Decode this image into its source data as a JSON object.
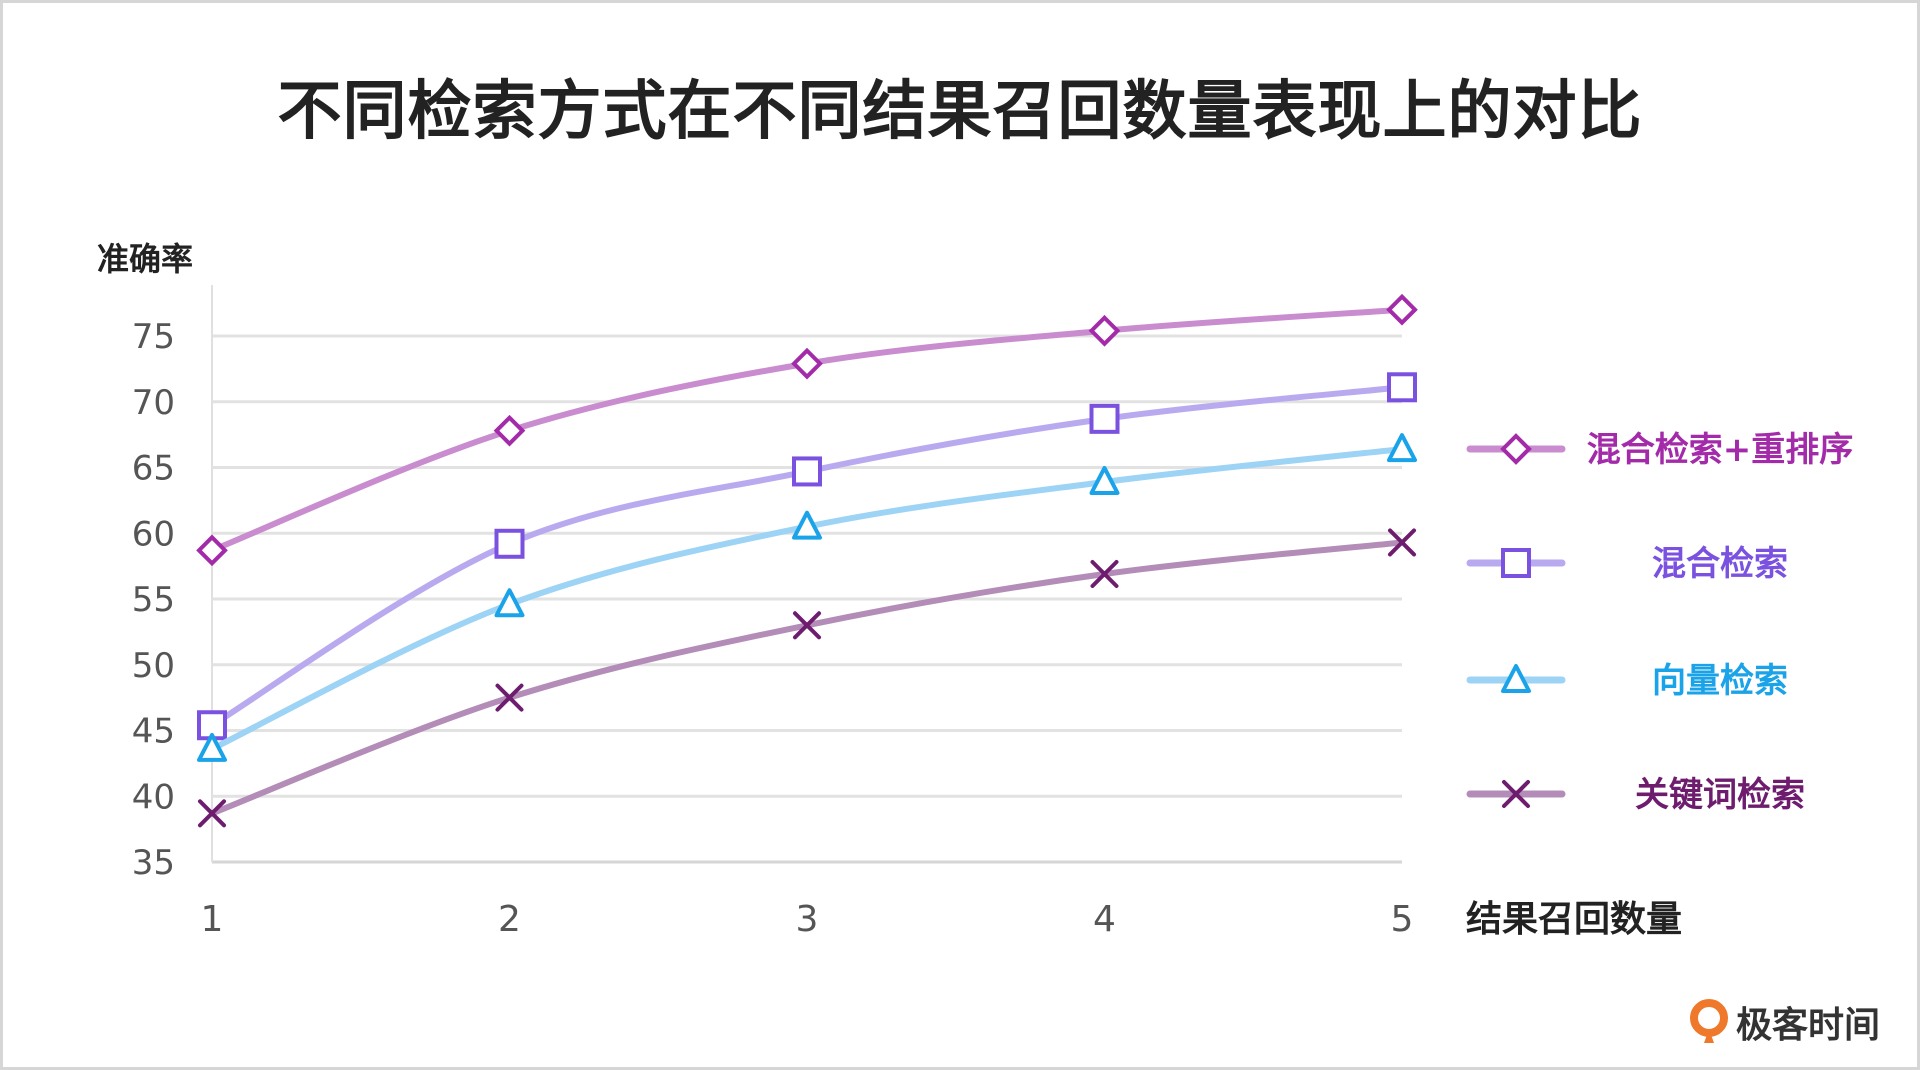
{
  "chart_data": {
    "type": "line",
    "title": "不同检索方式在不同结果召回数量表现上的对比",
    "xlabel": "结果召回数量",
    "ylabel": "准确率",
    "categories": [
      1,
      2,
      3,
      4,
      5
    ],
    "ylim": [
      35,
      75
    ],
    "yticks": [
      35,
      40,
      45,
      50,
      55,
      60,
      65,
      70,
      75
    ],
    "grid": "horizontal",
    "legend_position": "right",
    "series": [
      {
        "name": "混合检索+重排序",
        "marker": "diamond",
        "color": "#c98ccf",
        "marker_color": "#a32aa8",
        "label_color": "#a32aa8",
        "values": [
          58.7,
          67.8,
          72.9,
          75.4,
          77.0
        ]
      },
      {
        "name": "混合检索",
        "marker": "square",
        "color": "#b9aaf0",
        "marker_color": "#7b52e0",
        "label_color": "#7b52e0",
        "values": [
          45.4,
          59.2,
          64.7,
          68.7,
          71.1
        ]
      },
      {
        "name": "向量检索",
        "marker": "triangle",
        "color": "#9dd3f5",
        "marker_color": "#1aa3e8",
        "label_color": "#1aa3e8",
        "values": [
          43.6,
          54.6,
          60.5,
          63.9,
          66.4
        ]
      },
      {
        "name": "关键词检索",
        "marker": "x",
        "color": "#b38cb8",
        "marker_color": "#6e1c6e",
        "label_color": "#6e1c6e",
        "values": [
          38.7,
          47.5,
          53.0,
          56.9,
          59.3
        ]
      }
    ]
  },
  "brand": {
    "name": "极客时间",
    "logo_icon": "geektime-logo-icon",
    "logo_color": "#f0782a"
  }
}
